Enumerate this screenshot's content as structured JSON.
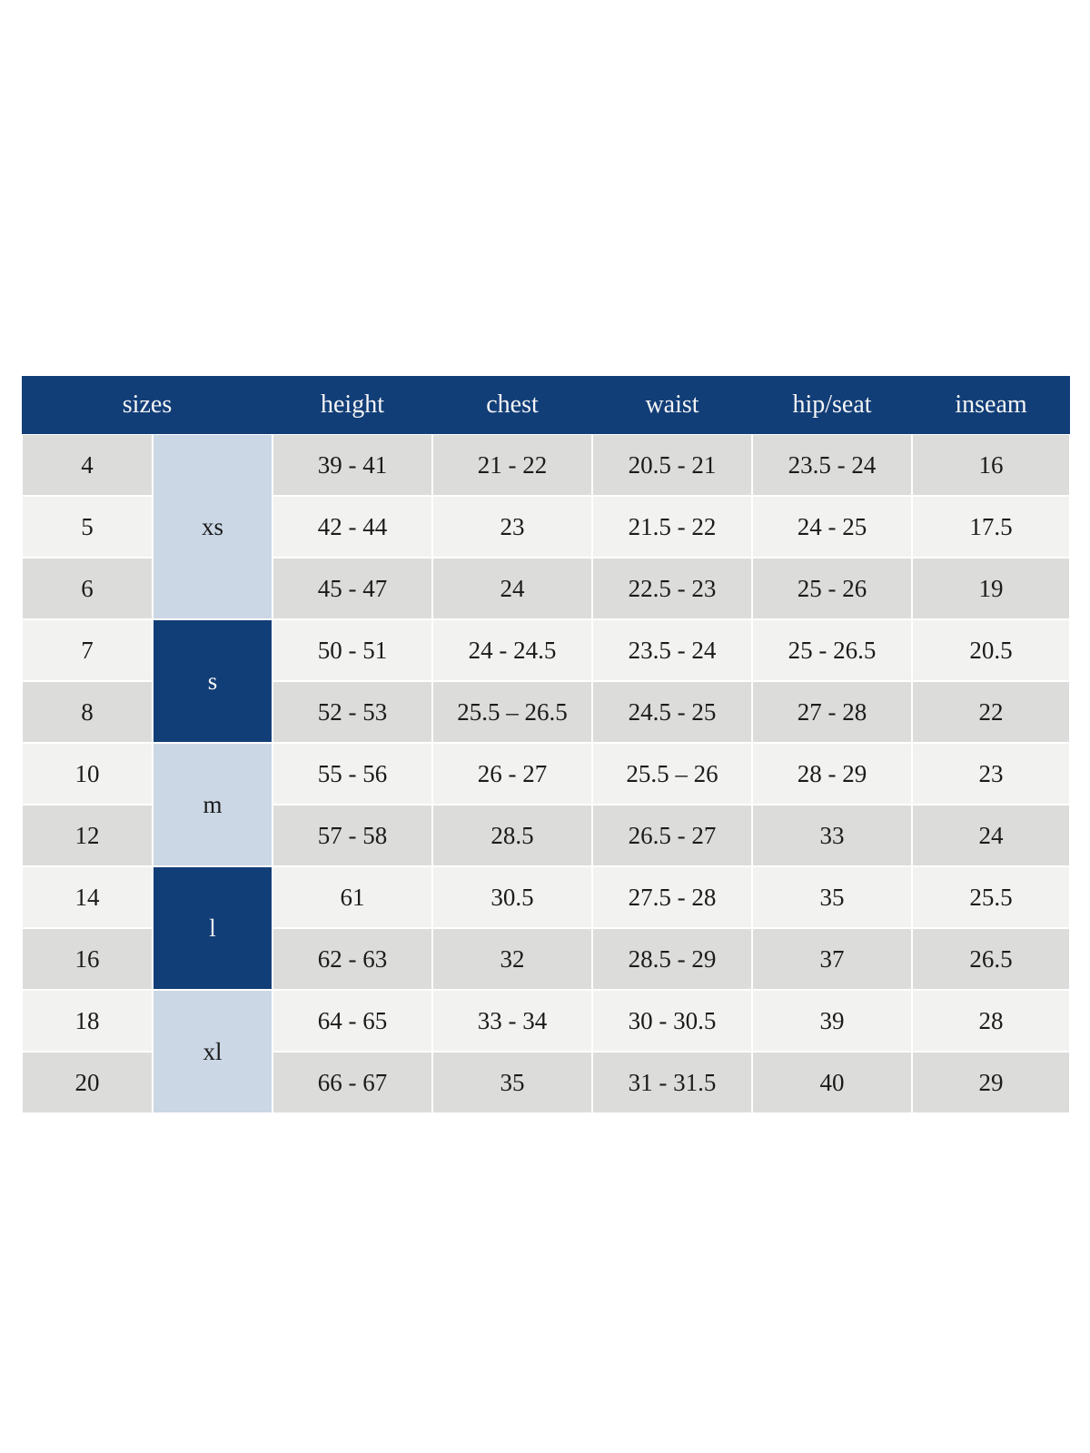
{
  "size_chart": {
    "headers": [
      {
        "label": "sizes"
      },
      {
        "label": "height"
      },
      {
        "label": "chest"
      },
      {
        "label": "waist"
      },
      {
        "label": "hip/seat"
      },
      {
        "label": "inseam"
      }
    ],
    "groups": [
      {
        "label": "xs",
        "variant": "light-blue",
        "rows": [
          {
            "size": "4",
            "shade": "gray",
            "values": [
              "39 - 41",
              "21 - 22",
              "20.5 - 21",
              "23.5 - 24",
              "16"
            ]
          },
          {
            "size": "5",
            "shade": "light",
            "values": [
              "42 - 44",
              "23",
              "21.5 - 22",
              "24 - 25",
              "17.5"
            ]
          },
          {
            "size": "6",
            "shade": "gray",
            "values": [
              "45 - 47",
              "24",
              "22.5 - 23",
              "25 - 26",
              "19"
            ]
          }
        ]
      },
      {
        "label": "s",
        "variant": "navy",
        "rows": [
          {
            "size": "7",
            "shade": "light",
            "values": [
              "50 - 51",
              "24 - 24.5",
              "23.5 - 24",
              "25 - 26.5",
              "20.5"
            ]
          },
          {
            "size": "8",
            "shade": "gray",
            "values": [
              "52 - 53",
              "25.5 – 26.5",
              "24.5 - 25",
              "27 - 28",
              "22"
            ]
          }
        ]
      },
      {
        "label": "m",
        "variant": "light-blue",
        "rows": [
          {
            "size": "10",
            "shade": "light",
            "values": [
              "55 - 56",
              "26 - 27",
              "25.5 – 26",
              "28 - 29",
              "23"
            ]
          },
          {
            "size": "12",
            "shade": "gray",
            "values": [
              "57 - 58",
              "28.5",
              "26.5 - 27",
              "33",
              "24"
            ]
          }
        ]
      },
      {
        "label": "l",
        "variant": "navy",
        "rows": [
          {
            "size": "14",
            "shade": "light",
            "values": [
              "61",
              "30.5",
              "27.5 - 28",
              "35",
              "25.5"
            ]
          },
          {
            "size": "16",
            "shade": "gray",
            "values": [
              "62 - 63",
              "32",
              "28.5 - 29",
              "37",
              "26.5"
            ]
          }
        ]
      },
      {
        "label": "xl",
        "variant": "light-blue",
        "rows": [
          {
            "size": "18",
            "shade": "light",
            "values": [
              "64 - 65",
              "33 - 34",
              "30 - 30.5",
              "39",
              "28"
            ]
          },
          {
            "size": "20",
            "shade": "gray",
            "values": [
              "66 - 67",
              "35",
              "31 - 31.5",
              "40",
              "29"
            ]
          }
        ]
      }
    ],
    "colors": {
      "navy": "#123e78",
      "light_blue": "#cbd7e5",
      "row_gray": "#dcdcda",
      "row_light": "#f2f2f1",
      "header_text": "#f5f5f5",
      "cell_text": "#1b1b1b"
    }
  }
}
